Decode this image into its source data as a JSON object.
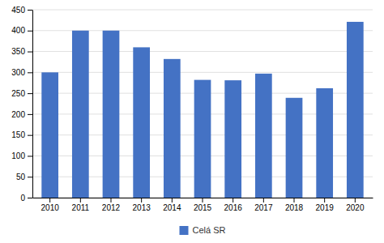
{
  "chart_data": {
    "type": "bar",
    "categories": [
      "2010",
      "2011",
      "2012",
      "2013",
      "2014",
      "2015",
      "2016",
      "2017",
      "2018",
      "2019",
      "2020"
    ],
    "series": [
      {
        "name": "Celá SR",
        "color": "#4472C4",
        "values": [
          300,
          400,
          400,
          360,
          332,
          282,
          281,
          297,
          239,
          262,
          421
        ]
      }
    ],
    "ylim": [
      0,
      450
    ],
    "yticks": [
      0,
      50,
      100,
      150,
      200,
      250,
      300,
      350,
      400,
      450
    ],
    "grid": true,
    "legend": "bottom"
  }
}
